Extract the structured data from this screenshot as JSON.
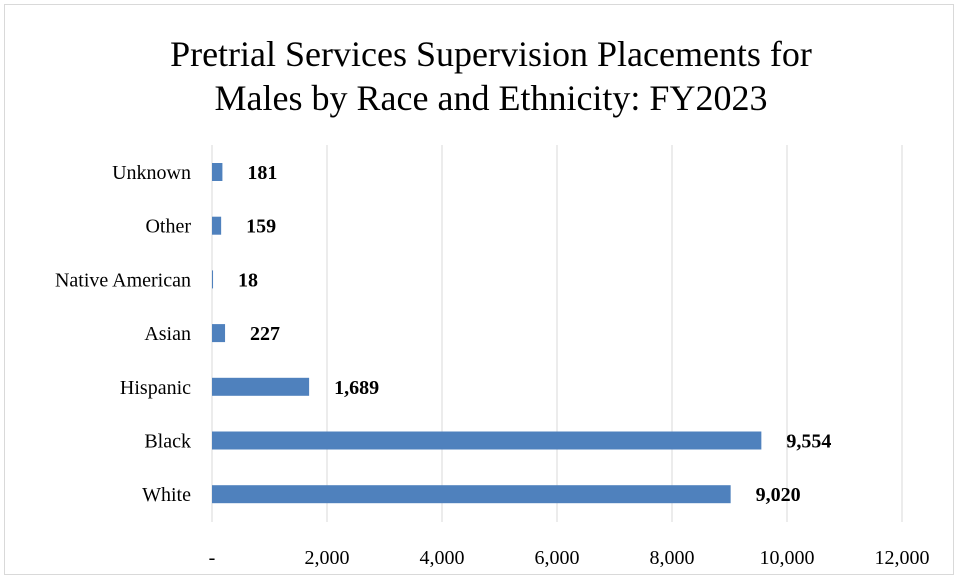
{
  "chart_data": {
    "type": "bar",
    "orientation": "horizontal",
    "title": "Pretrial Services Supervision Placements for Males by Race and Ethnicity: FY2023",
    "title_lines": [
      "Pretrial Services Supervision Placements for",
      "Males by Race and Ethnicity: FY2023"
    ],
    "categories": [
      "Unknown",
      "Other",
      "Native American",
      "Asian",
      "Hispanic",
      "Black",
      "White"
    ],
    "values": [
      181,
      159,
      18,
      227,
      1689,
      9554,
      9020
    ],
    "data_labels": [
      "181",
      "159",
      "18",
      "227",
      "1,689",
      "9,554",
      "9,020"
    ],
    "xlim": [
      0,
      12000
    ],
    "x_ticks": [
      0,
      2000,
      4000,
      6000,
      8000,
      10000,
      12000
    ],
    "x_tick_labels": [
      "-",
      "2,000",
      "4,000",
      "6,000",
      "8,000",
      "10,000",
      "12,000"
    ],
    "xlabel": "",
    "ylabel": "",
    "grid": "vertical",
    "legend": "none",
    "bar_color": "#4f81bd",
    "grid_color": "#d9d9d9"
  }
}
